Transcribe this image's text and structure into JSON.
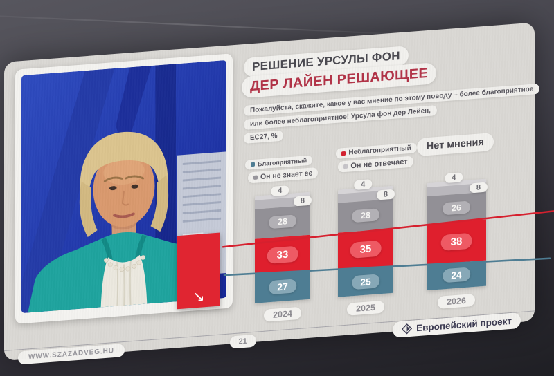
{
  "title": {
    "line1": "РЕШЕНИЕ УРСУЛЫ ФОН",
    "line2": "ДЕР ЛАЙЕН РЕШАЮЩЕЕ",
    "line1_color": "#4a4950",
    "line2_color": "#b23347"
  },
  "subtitle": {
    "line1": "Пожалуйста, скажите, какое у вас мнение по этому поводу – более благоприятное",
    "line2": "или более неблагоприятное! Урсула фон дер Лейен,",
    "line3": "ЕС27, %"
  },
  "legend": {
    "groups": [
      {
        "items": [
          {
            "label": "Благоприятный",
            "marker": "#4e7d93"
          },
          {
            "label": "Он не знает ее",
            "marker": "#97959b"
          }
        ]
      },
      {
        "items": [
          {
            "label": "Неблагоприятный",
            "marker": "#d31f2e"
          },
          {
            "label": "Он не отвечает",
            "marker": "#c7c5c9"
          }
        ]
      },
      {
        "items": [
          {
            "label": "Нет мнения",
            "marker": ""
          }
        ]
      }
    ]
  },
  "chart_data": {
    "type": "bar",
    "stacked": true,
    "unit": "%",
    "ylim": [
      0,
      100
    ],
    "stack_order": "top-to-bottom",
    "categories": [
      "2024",
      "2025",
      "2026"
    ],
    "series": [
      {
        "name": "Нет мнения",
        "values": [
          4,
          4,
          4
        ],
        "color": "#d6d4d7",
        "pill_bg": "#f2f1ee",
        "pill_text": "#6e6d73"
      },
      {
        "name": "Он не отвечает",
        "values": [
          8,
          8,
          8
        ],
        "color": "#b9b7bc",
        "pill_bg": "#f2f1ee",
        "pill_text": "#6e6d73"
      },
      {
        "name": "Он не знает ее",
        "values": [
          28,
          28,
          26
        ],
        "color": "#929096",
        "pill_bg": "#b2b0b5",
        "pill_text": "#f5f4f2"
      },
      {
        "name": "Неблагоприятный",
        "values": [
          33,
          35,
          38
        ],
        "color": "#df1f2d",
        "pill_bg": "#ee5a64",
        "pill_text": "#ffffff"
      },
      {
        "name": "Благоприятный",
        "values": [
          27,
          25,
          24
        ],
        "color": "#4e7d93",
        "pill_bg": "#87a8b7",
        "pill_text": "#ffffff"
      }
    ],
    "trend_lines": [
      {
        "name": "Неблагоприятный тренд",
        "color": "#d6202e",
        "direction": "rising"
      },
      {
        "name": "Благоприятный тренд",
        "color": "#4e7d93",
        "direction": "falling"
      }
    ],
    "legend_position": "top",
    "grid": false
  },
  "photo": {
    "alt": "Портрет Урсулы фон дер Лейен на фоне флага ЕС",
    "badge_arrow": "↘"
  },
  "footer": {
    "url": "WWW.SZAZADVEG.HU",
    "page": "21",
    "brand": "Европейский проект"
  }
}
